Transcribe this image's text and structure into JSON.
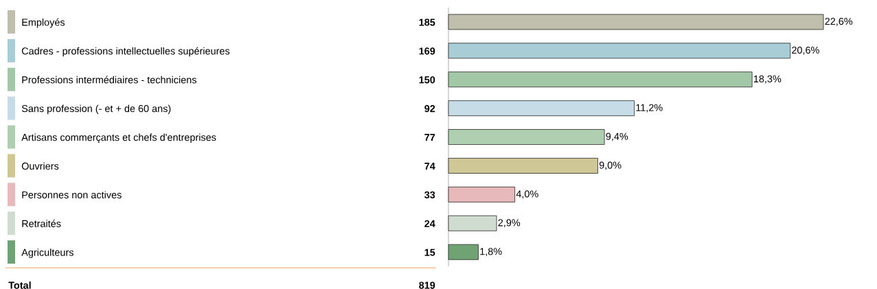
{
  "chart_data": {
    "type": "bar",
    "orientation": "horizontal",
    "categories": [
      "Employés",
      "Cadres - professions intellectuelles supérieures",
      "Professions intermédiaires - techniciens",
      "Sans profession (- et + de 60 ans)",
      "Artisans commerçants et chefs d'entreprises",
      "Ouvriers",
      "Personnes non actives",
      "Retraités",
      "Agriculteurs"
    ],
    "values": [
      22.6,
      20.6,
      18.3,
      11.2,
      9.4,
      9.0,
      4.0,
      2.9,
      1.8
    ],
    "value_labels": [
      "22,6%",
      "20,6%",
      "18,3%",
      "11,2%",
      "9,4%",
      "9,0%",
      "4,0%",
      "2,9%",
      "1,8%"
    ],
    "colors": [
      "#c0bfae",
      "#a8cdd7",
      "#a3c8a7",
      "#c6dce7",
      "#b0cfb0",
      "#cfc796",
      "#e8b9ba",
      "#d1dcd0",
      "#6fa374"
    ],
    "annotations": [
      "185",
      "169",
      "150",
      "92",
      "77",
      "74",
      "33",
      "24",
      "15",
      "Total",
      "819"
    ]
  }
}
